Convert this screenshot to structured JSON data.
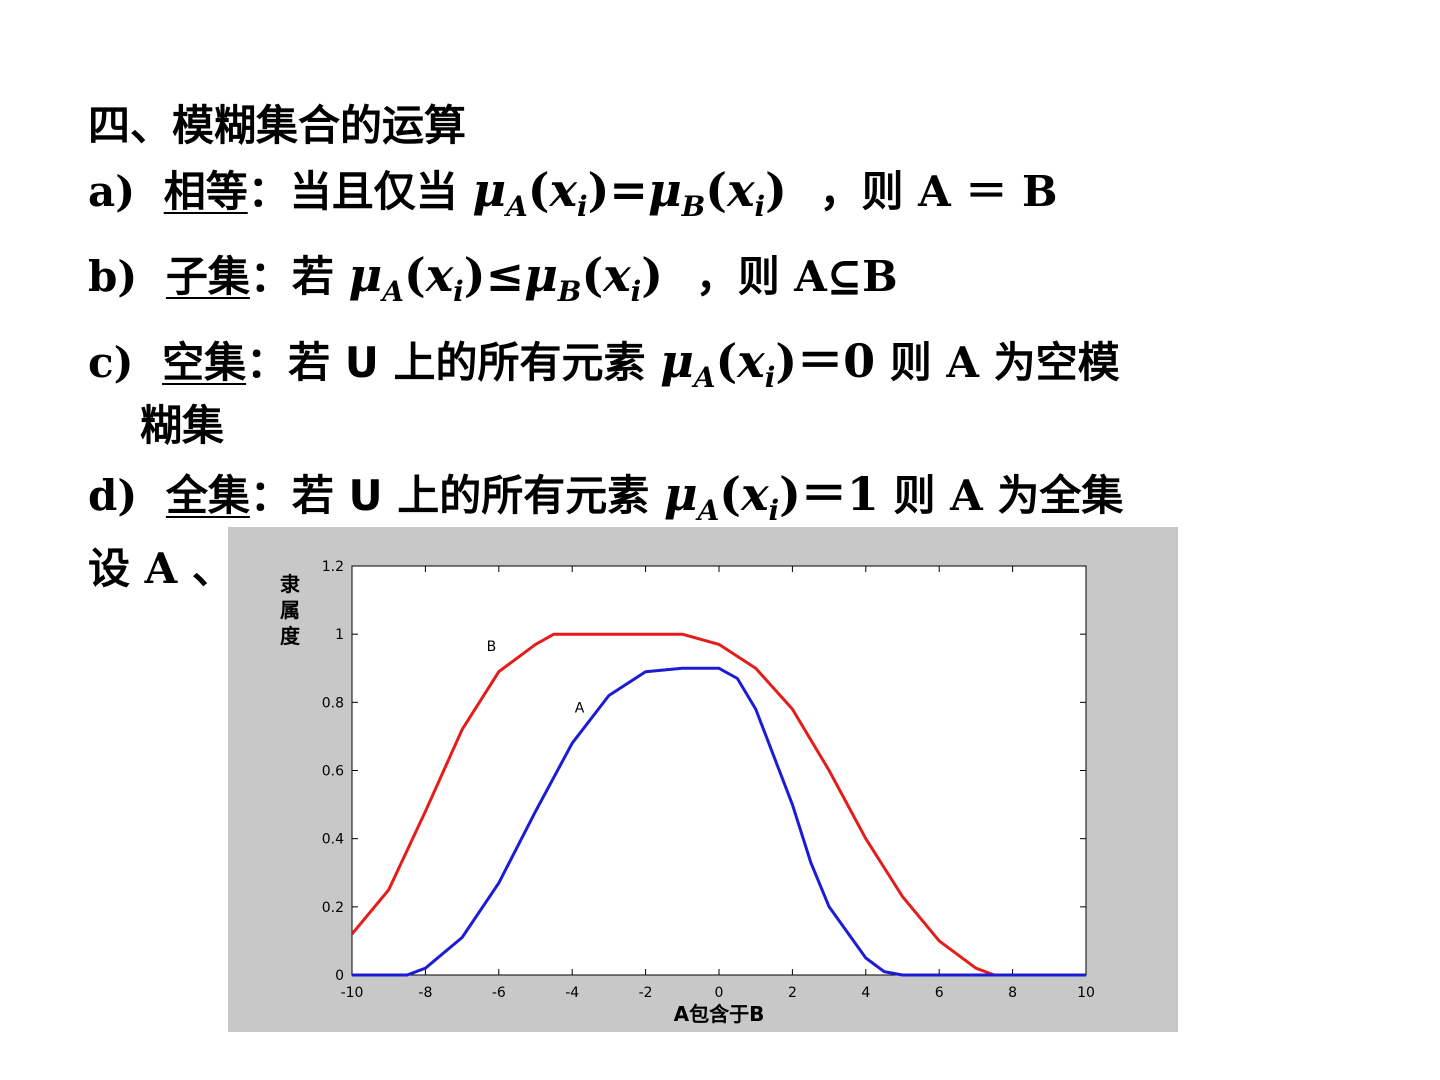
{
  "heading": "四、模糊集合的运算",
  "items": [
    {
      "label": "a)",
      "term": "相等",
      "colon": "：",
      "pre": "当且仅当",
      "formula": {
        "mu": "μ",
        "subA": "A",
        "lp": "(",
        "x": "x",
        "i": "i",
        "rp": ")",
        "op": "=",
        "subB": "B"
      },
      "post": "，则 A ＝ B"
    },
    {
      "label": "b)",
      "term": "子集",
      "colon": "：",
      "pre": "若",
      "formula": {
        "mu": "μ",
        "subA": "A",
        "lp": "(",
        "x": "x",
        "i": "i",
        "rp": ")",
        "op": "≤",
        "subB": "B"
      },
      "post": "，则 A⊆B"
    },
    {
      "label": "c)",
      "term": "空集",
      "colon": "：",
      "pre": "若 U 上的所有元素",
      "formula": {
        "mu": "μ",
        "subA": "A",
        "lp": "(",
        "x": "x",
        "i": "i",
        "rp": ")",
        "eq": "＝",
        "val": "0"
      },
      "post": "则 A 为空模",
      "cont": "糊集"
    },
    {
      "label": "d)",
      "term": "全集",
      "colon": "：",
      "pre": "若 U 上的所有元素",
      "formula": {
        "mu": "μ",
        "subA": "A",
        "lp": "(",
        "x": "x",
        "i": "i",
        "rp": ")",
        "eq": "＝",
        "val": "1"
      },
      "post": "则 A 为全集"
    }
  ],
  "partial_line": "设 A 、",
  "chart_data": {
    "type": "line",
    "xlabel": "A包含于B",
    "ylabel": "隶属度",
    "xlim": [
      -10,
      10
    ],
    "ylim": [
      0,
      1.2
    ],
    "xticks": [
      "-10",
      "-8",
      "-6",
      "-4",
      "-2",
      "0",
      "2",
      "4",
      "6",
      "8",
      "10"
    ],
    "yticks": [
      "0",
      "0.2",
      "0.4",
      "0.6",
      "0.8",
      "1",
      "1.2"
    ],
    "grid": false,
    "series": [
      {
        "name": "B",
        "color": "#e51c1c",
        "x": [
          -10,
          -9,
          -8,
          -7,
          -6,
          -5,
          -4.5,
          -4,
          -3,
          -2,
          -1,
          0,
          1,
          2,
          3,
          4,
          5,
          6,
          7,
          7.5,
          8,
          9,
          10
        ],
        "y": [
          0.12,
          0.25,
          0.48,
          0.72,
          0.89,
          0.97,
          1.0,
          1.0,
          1.0,
          1.0,
          1.0,
          0.97,
          0.9,
          0.78,
          0.6,
          0.4,
          0.23,
          0.1,
          0.02,
          0.0,
          0.0,
          0.0,
          0.0
        ]
      },
      {
        "name": "A",
        "color": "#1c1cd6",
        "x": [
          -10,
          -9,
          -8.5,
          -8,
          -7,
          -6,
          -5,
          -4,
          -3,
          -2,
          -1,
          0,
          0.5,
          1,
          2,
          2.5,
          3,
          4,
          4.5,
          5,
          6,
          8,
          10
        ],
        "y": [
          0.0,
          0.0,
          0.0,
          0.02,
          0.11,
          0.27,
          0.48,
          0.68,
          0.82,
          0.89,
          0.9,
          0.9,
          0.87,
          0.78,
          0.5,
          0.33,
          0.2,
          0.05,
          0.01,
          0.0,
          0.0,
          0.0,
          0.0
        ]
      }
    ],
    "annotations": [
      {
        "text": "B",
        "x": -6.2,
        "y": 0.95
      },
      {
        "text": "A",
        "x": -3.8,
        "y": 0.77
      }
    ]
  }
}
